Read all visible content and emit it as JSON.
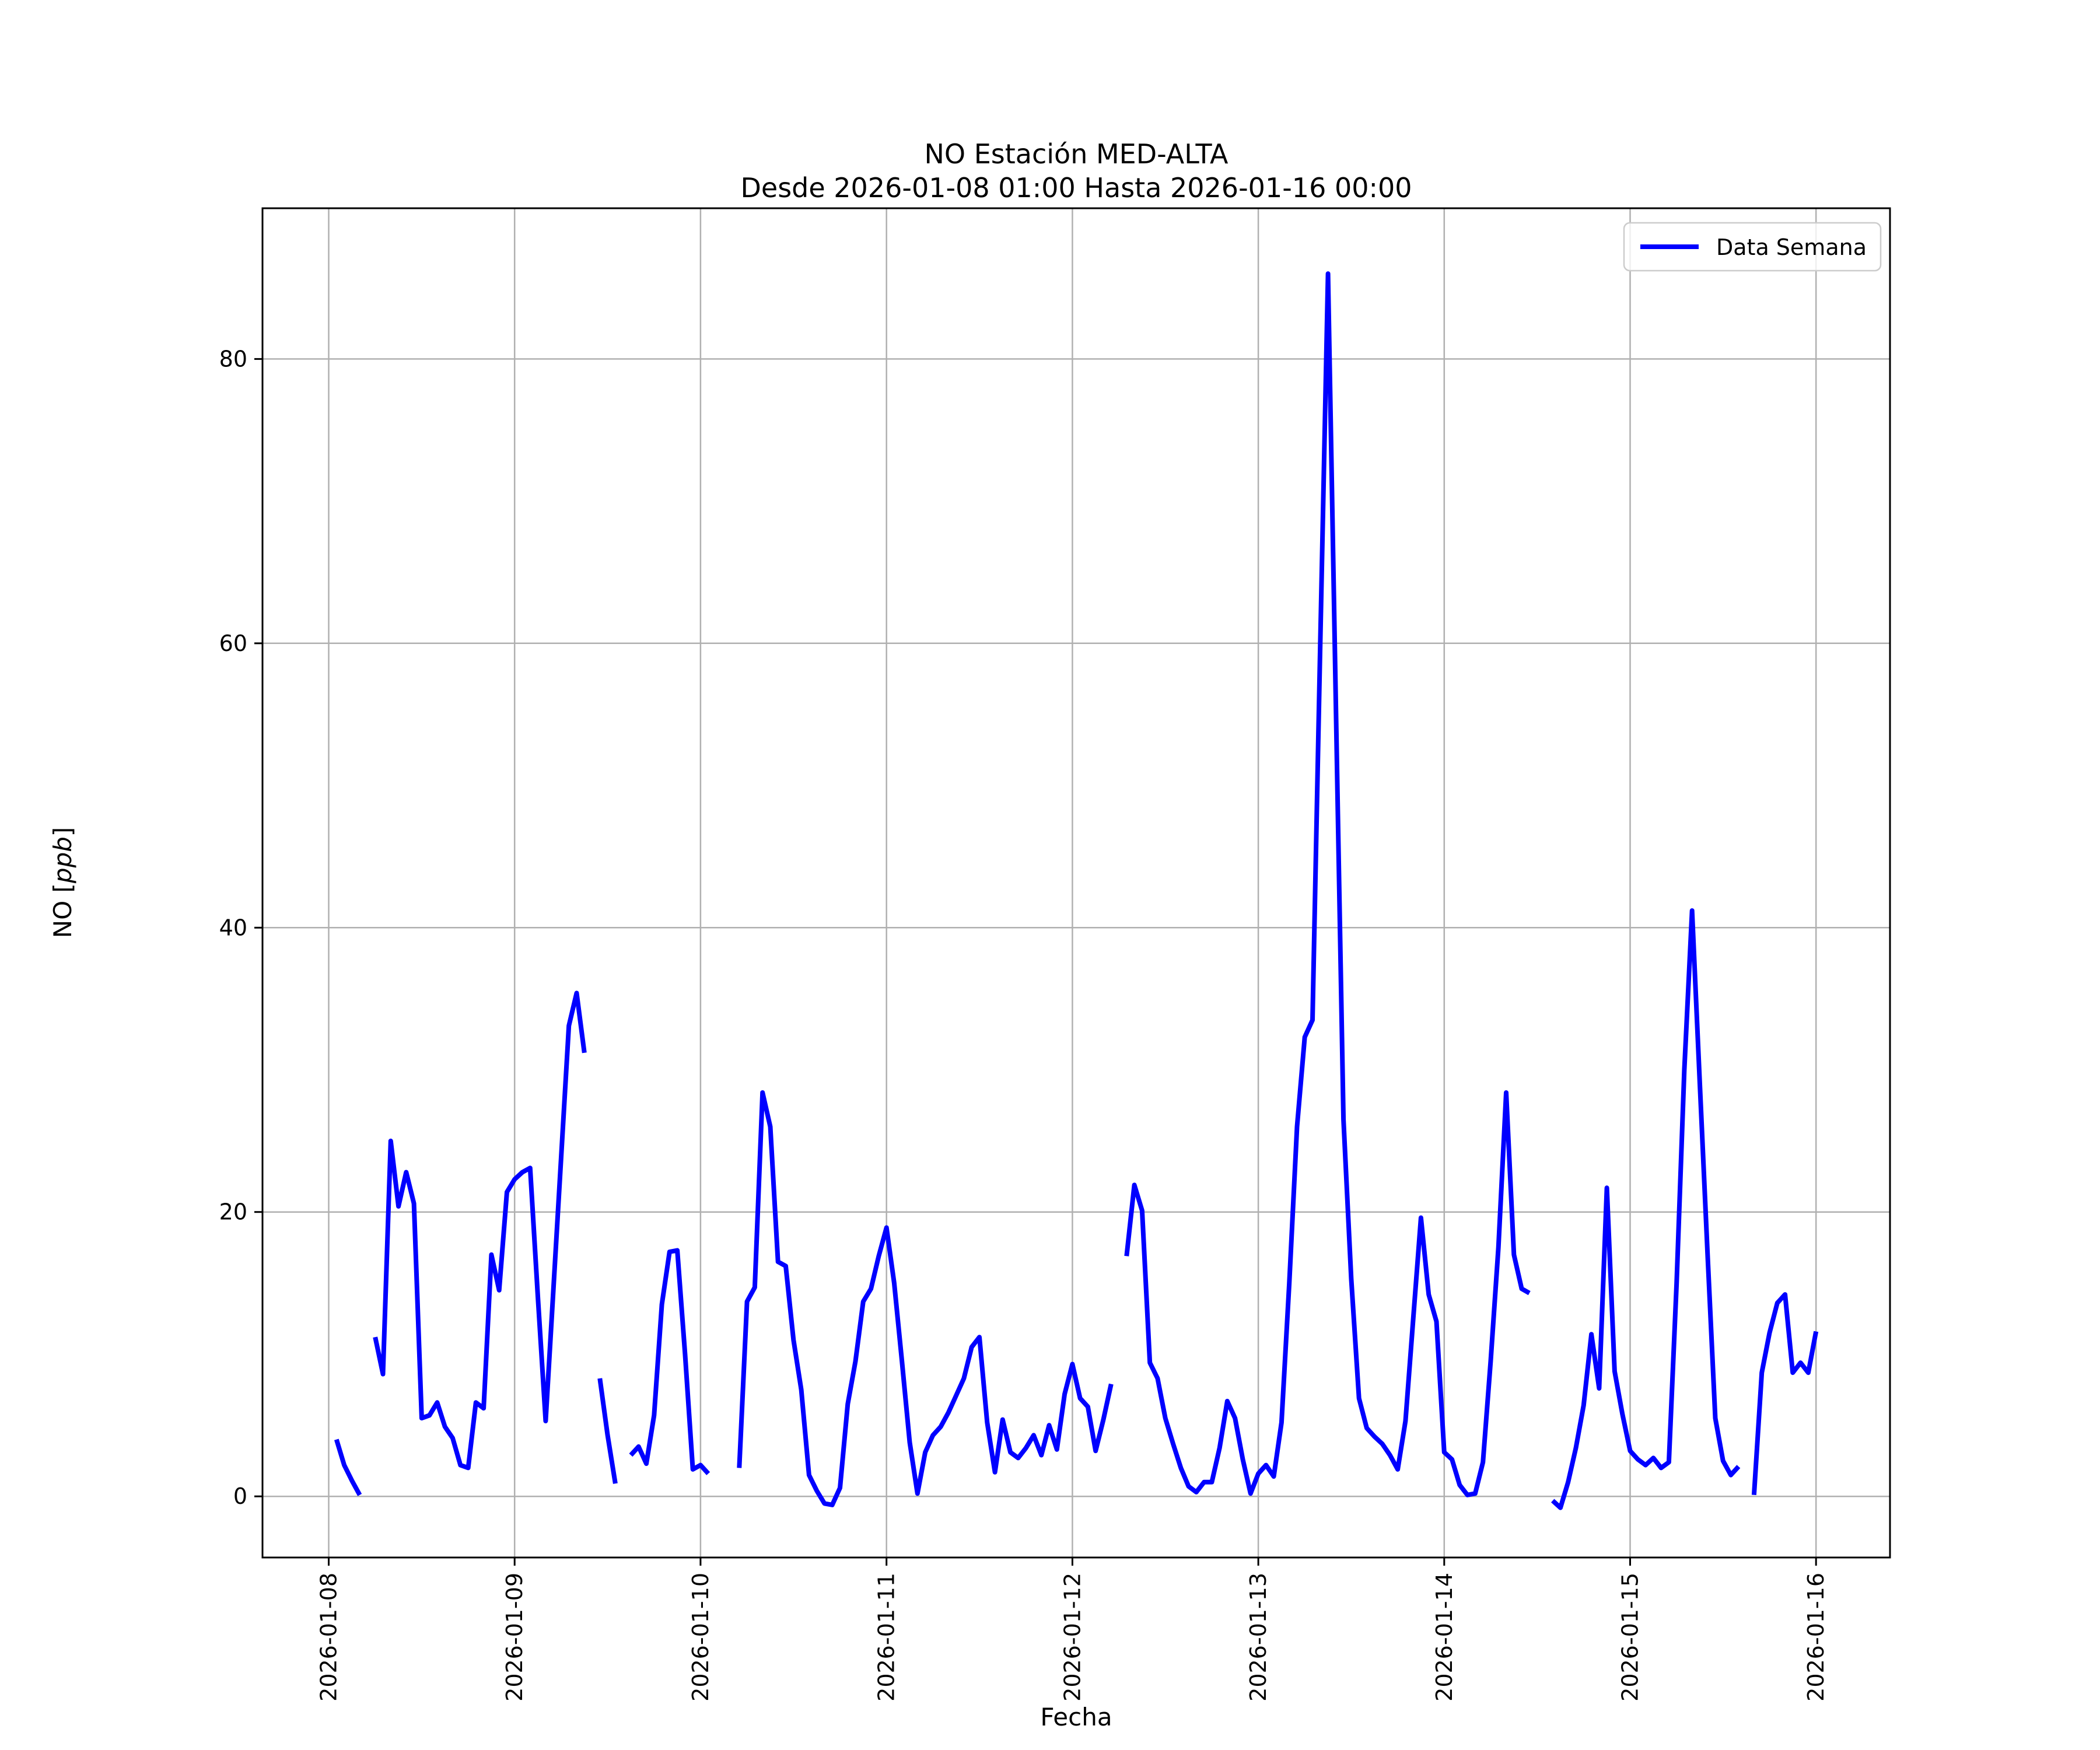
{
  "title": {
    "line1": "NO Estación MED-ALTA",
    "line2": "Desde 2026-01-08 01:00 Hasta 2026-01-16 00:00"
  },
  "axes": {
    "xlabel": "Fecha",
    "ylabel": "NO [ppb]",
    "ylabel_prefix": "NO [",
    "ylabel_math": "ppb",
    "ylabel_suffix": "]"
  },
  "legend": {
    "label": "Data Semana",
    "color": "#0000ff"
  },
  "colors": {
    "line": "#0000ff",
    "grid": "#b0b0b0",
    "spine": "#000000",
    "legend_border": "#cccccc",
    "background": "#ffffff"
  },
  "chart_data": {
    "type": "line",
    "title": "NO Estación MED-ALTA",
    "subtitle": "Desde 2026-01-08 01:00 Hasta 2026-01-16 00:00",
    "xlabel": "Fecha",
    "ylabel": "NO [ppb]",
    "y_unit": "ppb",
    "grid": true,
    "legend_position": "upper right",
    "x_start": "2026-01-08 01:00",
    "x_step_hours": 1,
    "x_tick_hours": [
      0,
      24,
      48,
      72,
      96,
      120,
      144,
      168,
      192
    ],
    "x_tick_labels": [
      "2026-01-08",
      "2026-01-09",
      "2026-01-10",
      "2026-01-11",
      "2026-01-12",
      "2026-01-13",
      "2026-01-14",
      "2026-01-15",
      "2026-01-16"
    ],
    "xlim_hours": [
      -8.55,
      201.55
    ],
    "yticks": [
      0,
      20,
      40,
      60,
      80
    ],
    "ylim": [
      -4.3,
      90.6
    ],
    "series": [
      {
        "name": "Data Semana",
        "color": "#0000ff",
        "values": [
          4.0,
          2.2,
          1.1,
          0.1,
          null,
          11.2,
          8.6,
          25.0,
          20.4,
          22.8,
          20.6,
          5.5,
          5.7,
          6.6,
          4.9,
          4.1,
          2.2,
          2.0,
          6.6,
          6.2,
          17.0,
          14.5,
          21.4,
          22.3,
          22.8,
          23.1,
          14.0,
          5.3,
          14.5,
          23.8,
          33.1,
          35.4,
          31.2,
          null,
          8.3,
          4.3,
          0.9,
          null,
          2.9,
          3.5,
          2.3,
          5.7,
          13.5,
          17.2,
          17.3,
          10.0,
          1.9,
          2.2,
          1.6,
          null,
          null,
          null,
          2.0,
          13.7,
          14.7,
          28.4,
          26.0,
          16.5,
          16.2,
          11.0,
          7.5,
          1.5,
          0.4,
          -0.5,
          -0.6,
          0.6,
          6.5,
          9.5,
          13.7,
          14.6,
          16.9,
          18.9,
          15.0,
          9.5,
          3.8,
          0.2,
          3.1,
          4.3,
          4.9,
          5.9,
          7.1,
          8.3,
          10.5,
          11.2,
          5.2,
          1.7,
          5.4,
          3.1,
          2.7,
          3.4,
          4.3,
          2.9,
          5.0,
          3.3,
          7.2,
          9.3,
          6.9,
          6.3,
          3.2,
          5.4,
          7.9,
          null,
          16.9,
          21.9,
          20.1,
          9.4,
          8.3,
          5.5,
          3.7,
          2.0,
          0.7,
          0.3,
          1.0,
          1.0,
          3.4,
          6.7,
          5.5,
          2.6,
          0.2,
          1.6,
          2.2,
          1.4,
          5.2,
          15.0,
          26.0,
          32.3,
          33.5,
          60.0,
          86.0,
          56.0,
          26.5,
          15.3,
          6.9,
          4.8,
          4.2,
          3.7,
          2.9,
          1.9,
          5.3,
          12.5,
          19.6,
          14.2,
          12.3,
          3.1,
          2.6,
          0.8,
          0.1,
          0.2,
          2.4,
          9.5,
          17.5,
          28.4,
          17.0,
          14.6,
          14.3,
          null,
          null,
          -0.3,
          -0.8,
          1.0,
          3.4,
          6.4,
          11.4,
          7.6,
          21.7,
          8.8,
          5.8,
          3.2,
          2.6,
          2.2,
          2.7,
          2.0,
          2.4,
          15.0,
          30.0,
          41.2,
          29.0,
          17.0,
          5.5,
          2.5,
          1.5,
          2.1,
          null,
          0.1,
          8.7,
          11.5,
          13.6,
          14.2,
          8.7,
          9.4,
          8.7,
          11.6
        ]
      }
    ]
  }
}
